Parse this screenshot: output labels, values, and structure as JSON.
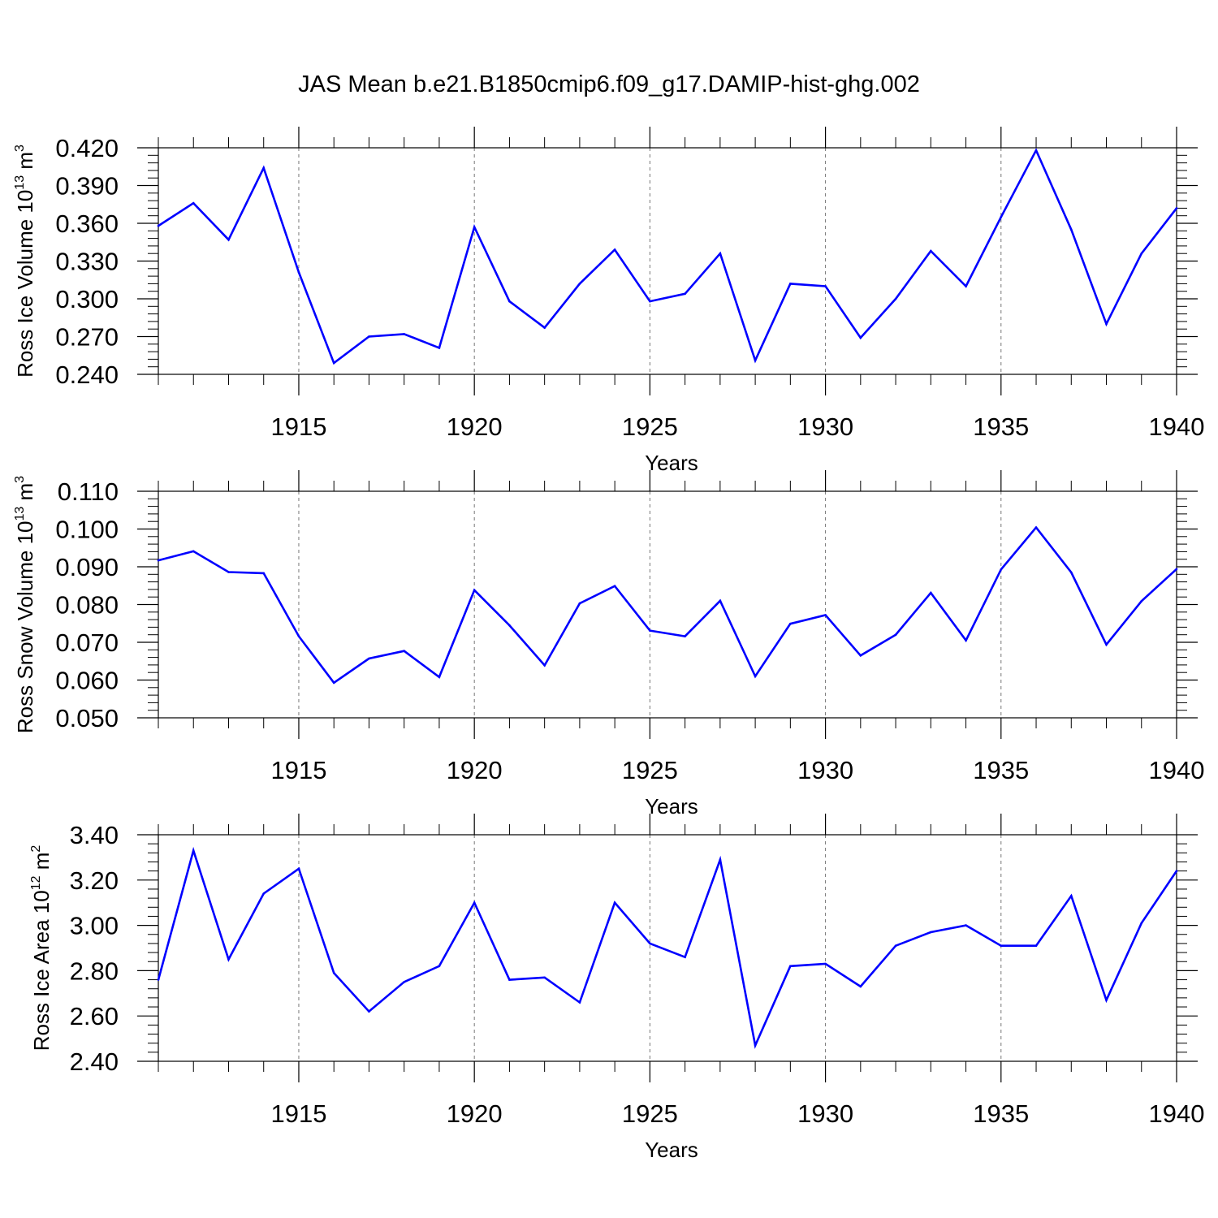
{
  "title": "JAS Mean b.e21.B1850cmip6.f09_g17.DAMIP-hist-ghg.002",
  "line_color": "#0000ff",
  "chart_data": [
    {
      "type": "line",
      "ylabel": "Ross Ice Volume 10",
      "ylabel_exp": "13",
      "ylabel_unit": " m",
      "ylabel_unit_exp": "3",
      "xlabel": "Years",
      "xlim": [
        1911,
        1940
      ],
      "ylim": [
        0.24,
        0.42
      ],
      "yticks": [
        "0.420",
        "0.390",
        "0.360",
        "0.330",
        "0.300",
        "0.270",
        "0.240"
      ],
      "ytick_values": [
        0.42,
        0.39,
        0.36,
        0.33,
        0.3,
        0.27,
        0.24
      ],
      "xticks": [
        "1915",
        "1920",
        "1925",
        "1930",
        "1935",
        "1940"
      ],
      "xtick_values": [
        1915,
        1920,
        1925,
        1930,
        1935,
        1940
      ],
      "x": [
        1911,
        1912,
        1913,
        1914,
        1915,
        1916,
        1917,
        1918,
        1919,
        1920,
        1921,
        1922,
        1923,
        1924,
        1925,
        1926,
        1927,
        1928,
        1929,
        1930,
        1931,
        1932,
        1933,
        1934,
        1935,
        1936,
        1937,
        1938,
        1939,
        1940
      ],
      "values": [
        0.358,
        0.376,
        0.347,
        0.404,
        0.321,
        0.249,
        0.27,
        0.272,
        0.261,
        0.357,
        0.298,
        0.277,
        0.312,
        0.339,
        0.298,
        0.304,
        0.336,
        0.251,
        0.312,
        0.31,
        0.269,
        0.3,
        0.338,
        0.31,
        0.365,
        0.418,
        0.355,
        0.28,
        0.336,
        0.372
      ]
    },
    {
      "type": "line",
      "ylabel": "Ross Snow Volume 10",
      "ylabel_exp": "13",
      "ylabel_unit": " m",
      "ylabel_unit_exp": "3",
      "xlabel": "Years",
      "xlim": [
        1911,
        1940
      ],
      "ylim": [
        0.05,
        0.11
      ],
      "yticks": [
        "0.110",
        "0.100",
        "0.090",
        "0.080",
        "0.070",
        "0.060",
        "0.050"
      ],
      "ytick_values": [
        0.11,
        0.1,
        0.09,
        0.08,
        0.07,
        0.06,
        0.05
      ],
      "xticks": [
        "1915",
        "1920",
        "1925",
        "1930",
        "1935",
        "1940"
      ],
      "xtick_values": [
        1915,
        1920,
        1925,
        1930,
        1935,
        1940
      ],
      "x": [
        1911,
        1912,
        1913,
        1914,
        1915,
        1916,
        1917,
        1918,
        1919,
        1920,
        1921,
        1922,
        1923,
        1924,
        1925,
        1926,
        1927,
        1928,
        1929,
        1930,
        1931,
        1932,
        1933,
        1934,
        1935,
        1936,
        1937,
        1938,
        1939,
        1940
      ],
      "values": [
        0.0917,
        0.0941,
        0.0886,
        0.0883,
        0.0716,
        0.0593,
        0.0657,
        0.0677,
        0.0608,
        0.0838,
        0.0745,
        0.0639,
        0.0803,
        0.0849,
        0.0731,
        0.0716,
        0.081,
        0.061,
        0.0749,
        0.0772,
        0.0665,
        0.072,
        0.0831,
        0.0705,
        0.0893,
        0.1004,
        0.0885,
        0.0694,
        0.0809,
        0.0894
      ]
    },
    {
      "type": "line",
      "ylabel": "Ross Ice Area 10",
      "ylabel_exp": "12",
      "ylabel_unit": " m",
      "ylabel_unit_exp": "2",
      "xlabel": "Years",
      "xlim": [
        1911,
        1940
      ],
      "ylim": [
        2.4,
        3.4
      ],
      "yticks": [
        "3.40",
        "3.20",
        "3.00",
        "2.80",
        "2.60",
        "2.40"
      ],
      "ytick_values": [
        3.4,
        3.2,
        3.0,
        2.8,
        2.6,
        2.4
      ],
      "xticks": [
        "1915",
        "1920",
        "1925",
        "1930",
        "1935",
        "1940"
      ],
      "xtick_values": [
        1915,
        1920,
        1925,
        1930,
        1935,
        1940
      ],
      "x": [
        1911,
        1912,
        1913,
        1914,
        1915,
        1916,
        1917,
        1918,
        1919,
        1920,
        1921,
        1922,
        1923,
        1924,
        1925,
        1926,
        1927,
        1928,
        1929,
        1930,
        1931,
        1932,
        1933,
        1934,
        1935,
        1936,
        1937,
        1938,
        1939,
        1940
      ],
      "values": [
        2.76,
        3.33,
        2.85,
        3.14,
        3.25,
        2.79,
        2.62,
        2.75,
        2.82,
        3.1,
        2.76,
        2.77,
        2.66,
        3.1,
        2.92,
        2.86,
        3.29,
        2.47,
        2.82,
        2.83,
        2.73,
        2.91,
        2.97,
        3.0,
        2.91,
        2.91,
        3.13,
        2.67,
        3.01,
        3.24
      ]
    }
  ]
}
